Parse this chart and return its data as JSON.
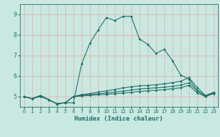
{
  "xlabel": "Humidex (Indice chaleur)",
  "xlim": [
    -0.5,
    23.5
  ],
  "ylim": [
    4.5,
    9.5
  ],
  "xticks": [
    0,
    1,
    2,
    3,
    4,
    5,
    6,
    7,
    8,
    9,
    10,
    11,
    12,
    13,
    14,
    15,
    16,
    17,
    18,
    19,
    20,
    21,
    22,
    23
  ],
  "yticks": [
    5,
    6,
    7,
    8,
    9
  ],
  "bg_color": "#c8e8e0",
  "grid_color": "#e8b0b0",
  "line_color": "#1a7068",
  "lines": [
    {
      "x": [
        0,
        1,
        2,
        3,
        4,
        5,
        6,
        7,
        8,
        9,
        10,
        11,
        12,
        13,
        14,
        15,
        16,
        17,
        18,
        19,
        20,
        21,
        22,
        23
      ],
      "y": [
        5.0,
        4.9,
        5.0,
        4.85,
        4.65,
        4.7,
        4.7,
        6.6,
        7.6,
        8.25,
        8.85,
        8.7,
        8.9,
        8.9,
        7.8,
        7.55,
        7.1,
        7.3,
        6.75,
        6.05,
        5.85,
        5.3,
        5.05,
        5.2
      ]
    },
    {
      "x": [
        0,
        1,
        2,
        3,
        4,
        5,
        6,
        7,
        8,
        9,
        10,
        11,
        12,
        13,
        14,
        15,
        16,
        17,
        18,
        19,
        20,
        21,
        22,
        23
      ],
      "y": [
        5.0,
        4.9,
        5.05,
        4.85,
        4.65,
        4.7,
        5.0,
        5.1,
        5.15,
        5.22,
        5.28,
        5.35,
        5.42,
        5.48,
        5.52,
        5.55,
        5.58,
        5.62,
        5.68,
        5.75,
        5.92,
        5.45,
        5.05,
        5.2
      ]
    },
    {
      "x": [
        0,
        1,
        2,
        3,
        4,
        5,
        6,
        7,
        8,
        9,
        10,
        11,
        12,
        13,
        14,
        15,
        16,
        17,
        18,
        19,
        20,
        21,
        22,
        23
      ],
      "y": [
        5.0,
        4.9,
        5.05,
        4.85,
        4.65,
        4.7,
        5.0,
        5.06,
        5.1,
        5.14,
        5.18,
        5.22,
        5.27,
        5.32,
        5.37,
        5.4,
        5.43,
        5.46,
        5.5,
        5.56,
        5.67,
        5.28,
        5.02,
        5.17
      ]
    },
    {
      "x": [
        0,
        1,
        2,
        3,
        4,
        5,
        6,
        7,
        8,
        9,
        10,
        11,
        12,
        13,
        14,
        15,
        16,
        17,
        18,
        19,
        20,
        21,
        22,
        23
      ],
      "y": [
        5.0,
        4.9,
        5.05,
        4.85,
        4.65,
        4.7,
        5.0,
        5.03,
        5.06,
        5.09,
        5.11,
        5.14,
        5.17,
        5.21,
        5.25,
        5.28,
        5.31,
        5.34,
        5.38,
        5.43,
        5.55,
        5.18,
        5.0,
        5.15
      ]
    }
  ]
}
